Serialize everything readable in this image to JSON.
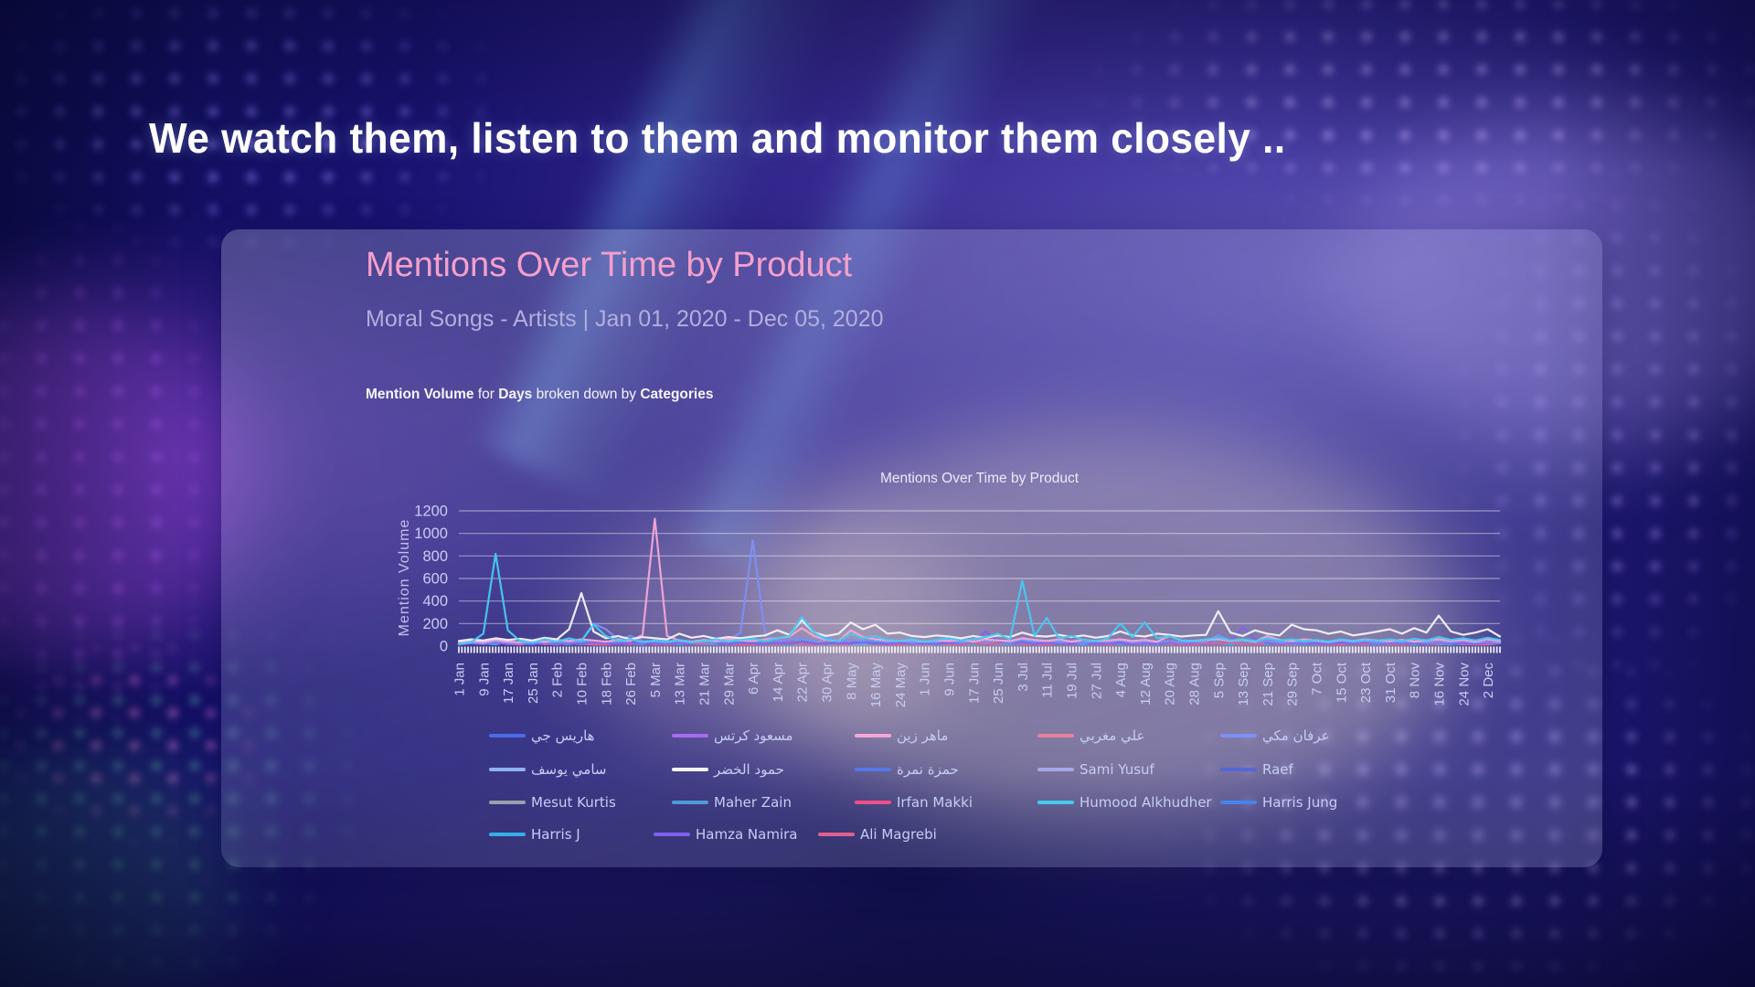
{
  "heading": "We watch them, listen to them and monitor them closely ..",
  "colors": {
    "title_pink": "#f4a0cc",
    "subtitle_lavender": "#b2aede",
    "axis_label": "#c9cdf0",
    "gridline": "rgba(255,255,255,0.45)"
  },
  "panel": {
    "title": "Mentions Over Time by Product",
    "subtitle": "Moral Songs - Artists | Jan 01, 2020 - Dec 05, 2020",
    "breakdown": {
      "metric": "Mention Volume",
      "mid1": " for ",
      "dimension": "Days",
      "mid2": " broken down by ",
      "grouping": "Categories"
    }
  },
  "chart_data": {
    "type": "line",
    "title": "Mentions Over Time by Product",
    "xlabel": "",
    "ylabel": "Mention Volume",
    "ylim": [
      0,
      1200
    ],
    "yticks": [
      0,
      200,
      400,
      600,
      800,
      1000,
      1200
    ],
    "grid": "horizontal",
    "legend_position": "bottom",
    "categories": [
      "1 Jan",
      "9 Jan",
      "17 Jan",
      "25 Jan",
      "2 Feb",
      "10 Feb",
      "18 Feb",
      "26 Feb",
      "5 Mar",
      "13 Mar",
      "21 Mar",
      "29 Mar",
      "6 Apr",
      "14 Apr",
      "22 Apr",
      "30 Apr",
      "8 May",
      "16 May",
      "24 May",
      "1 Jun",
      "9 Jun",
      "17 Jun",
      "25 Jun",
      "3 Jul",
      "11 Jul",
      "19 Jul",
      "27 Jul",
      "4 Aug",
      "12 Aug",
      "20 Aug",
      "28 Aug",
      "5 Sep",
      "13 Sep",
      "21 Sep",
      "29 Sep",
      "7 Oct",
      "15 Oct",
      "23 Oct",
      "31 Oct",
      "8 Nov",
      "16 Nov",
      "24 Nov",
      "2 Dec"
    ],
    "category_step_days": 8,
    "sample_step_days": 4,
    "total_days": 340,
    "series": [
      {
        "name": "هاريس جي",
        "color": "#4a6ae8",
        "values": [
          18,
          30,
          22,
          40,
          25,
          15,
          35,
          20,
          28,
          45,
          24,
          16
        ]
      },
      {
        "name": "مسعود كرتس",
        "color": "#a76bf0",
        "values": [
          20,
          35,
          25,
          15,
          45,
          28,
          18,
          38,
          22,
          30,
          16,
          42
        ]
      },
      {
        "name": "ماهر زين",
        "color": "#f4a6d7",
        "values": [
          30,
          45,
          35,
          55,
          40,
          35,
          50,
          40,
          55,
          45,
          60,
          50,
          40,
          55,
          45,
          100,
          1130,
          90,
          50,
          40,
          55,
          45,
          60,
          50,
          45,
          60,
          70,
          85,
          160,
          90,
          55,
          45,
          140,
          80,
          60,
          50,
          45,
          55,
          40,
          50,
          45,
          55,
          40,
          60,
          50,
          45,
          70,
          55,
          45,
          60,
          40,
          55,
          45,
          50,
          60,
          45,
          55,
          40,
          90,
          50,
          45,
          55,
          60,
          45,
          55,
          40,
          90,
          55,
          45,
          60,
          50,
          40,
          55,
          45,
          60,
          50,
          45,
          55,
          40,
          50,
          60,
          45,
          55,
          40,
          60,
          45
        ]
      },
      {
        "name": "علي مغربي",
        "color": "#e87f9d",
        "values": [
          15,
          28,
          20,
          35,
          18,
          25,
          40,
          22,
          15,
          30,
          24,
          18
        ]
      },
      {
        "name": "عرفان مكي",
        "color": "#7c90f5",
        "values": [
          20,
          30,
          25,
          40,
          30,
          25,
          35,
          30,
          40,
          35,
          45,
          200,
          150,
          60,
          90,
          45,
          40,
          35,
          45,
          30,
          40,
          35,
          50,
          120,
          940,
          100,
          45,
          55,
          70,
          45,
          80,
          40,
          55,
          45,
          60,
          35,
          45,
          30,
          40,
          35,
          50,
          30,
          45,
          35,
          55,
          30,
          60,
          40,
          45,
          35,
          40,
          30,
          45,
          35,
          50,
          30,
          40,
          35,
          45,
          30,
          40,
          35,
          100,
          45,
          55,
          35,
          45,
          30,
          40,
          35,
          45,
          30,
          50,
          35,
          45,
          30,
          40,
          35,
          45,
          30,
          40,
          35,
          45,
          30,
          40,
          30
        ]
      },
      {
        "name": "سامي يوسف",
        "color": "#8fb2f2",
        "values": [
          25,
          40,
          28,
          18,
          35,
          22,
          45,
          26,
          18,
          32,
          24,
          38
        ]
      },
      {
        "name": "حمود الخضر",
        "color": "#f3f3fa",
        "values": [
          45,
          60,
          50,
          70,
          55,
          65,
          50,
          75,
          60,
          150,
          470,
          130,
          70,
          90,
          60,
          80,
          70,
          60,
          110,
          75,
          90,
          65,
          80,
          70,
          85,
          95,
          140,
          100,
          230,
          120,
          90,
          110,
          210,
          150,
          190,
          110,
          120,
          90,
          80,
          95,
          85,
          70,
          90,
          75,
          95,
          80,
          120,
          90,
          85,
          100,
          80,
          95,
          75,
          90,
          130,
          95,
          85,
          110,
          100,
          85,
          95,
          100,
          310,
          120,
          90,
          140,
          110,
          95,
          190,
          150,
          140,
          110,
          130,
          95,
          110,
          130,
          150,
          110,
          160,
          120,
          270,
          130,
          100,
          120,
          150,
          85
        ]
      },
      {
        "name": "حمزة نمرة",
        "color": "#5577e8",
        "values": [
          18,
          32,
          22,
          42,
          26,
          16,
          36,
          24,
          18,
          30,
          40,
          20
        ]
      },
      {
        "name": "Sami Yusuf",
        "color": "#a6a6e6",
        "values": [
          22,
          38,
          26,
          16,
          44,
          28,
          20,
          34,
          24,
          18,
          40,
          26
        ]
      },
      {
        "name": "Raef",
        "color": "#5566d6",
        "values": [
          14,
          26,
          18,
          32,
          20,
          14,
          28,
          18,
          24,
          36,
          20,
          15
        ]
      },
      {
        "name": "Mesut Kurtis",
        "color": "#99a0ae",
        "values": [
          16,
          28,
          20,
          36,
          22,
          15,
          30,
          20,
          26,
          40,
          22,
          16
        ]
      },
      {
        "name": "Maher Zain",
        "color": "#4f9ad8",
        "values": [
          20,
          34,
          24,
          16,
          40,
          26,
          18,
          32,
          22,
          28,
          16,
          38
        ]
      },
      {
        "name": "Irfan Makki",
        "color": "#f04f88",
        "values": [
          15,
          27,
          19,
          33,
          21,
          14,
          29,
          19,
          25,
          37,
          21,
          15
        ]
      },
      {
        "name": "Humood Alkhudher",
        "color": "#47c9f2",
        "values": [
          20,
          35,
          110,
          820,
          140,
          45,
          30,
          60,
          40,
          70,
          45,
          190,
          90,
          45,
          60,
          35,
          50,
          40,
          55,
          35,
          45,
          60,
          40,
          55,
          65,
          45,
          70,
          90,
          260,
          120,
          60,
          45,
          110,
          70,
          90,
          55,
          45,
          60,
          40,
          55,
          70,
          50,
          60,
          80,
          110,
          60,
          580,
          90,
          250,
          70,
          90,
          55,
          45,
          70,
          200,
          80,
          210,
          70,
          90,
          50,
          45,
          60,
          75,
          50,
          60,
          45,
          70,
          50,
          60,
          45,
          55,
          40,
          60,
          45,
          55,
          50,
          60,
          45,
          65,
          50,
          80,
          55,
          70,
          50,
          75,
          55
        ]
      },
      {
        "name": "Harris Jung",
        "color": "#4584ee",
        "values": [
          17,
          30,
          21,
          38,
          24,
          15,
          33,
          21,
          27,
          42,
          23,
          16
        ]
      },
      {
        "name": "Harris J",
        "color": "#36aee8",
        "values": [
          24,
          42,
          28,
          18,
          48,
          30,
          20,
          38,
          26,
          20,
          44,
          28
        ]
      },
      {
        "name": "Hamza Namira",
        "color": "#7e62ee",
        "values": [
          15,
          25,
          20,
          30,
          20,
          25,
          15,
          30,
          20,
          25,
          20,
          35,
          25,
          20,
          30,
          20,
          25,
          20,
          30,
          20,
          60,
          25,
          20,
          30,
          25,
          20,
          30,
          20,
          40,
          25,
          20,
          30,
          25,
          35,
          25,
          20,
          30,
          20,
          25,
          20,
          30,
          25,
          40,
          130,
          45,
          25,
          35,
          20,
          30,
          25,
          20,
          30,
          20,
          25,
          30,
          20,
          25,
          20,
          35,
          25,
          30,
          40,
          60,
          45,
          170,
          60,
          30,
          25,
          30,
          20,
          25,
          20,
          30,
          25,
          35,
          20,
          30,
          25,
          30,
          20,
          35,
          25,
          30,
          20,
          30,
          25
        ]
      },
      {
        "name": "Ali Magrebi",
        "color": "#e0608e",
        "values": [
          16,
          29,
          20,
          35,
          22,
          15,
          31,
          20,
          26,
          39,
          22,
          16
        ]
      }
    ],
    "draw_order": [
      9,
      10,
      0,
      1,
      3,
      5,
      7,
      8,
      11,
      12,
      14,
      15,
      17,
      16,
      4,
      2,
      6,
      13
    ],
    "legend_rows": [
      {
        "series": [
          0,
          1,
          2,
          3,
          4
        ],
        "item_width": 200
      },
      {
        "series": [
          5,
          6,
          7,
          8,
          9
        ],
        "item_width": 200
      },
      {
        "series": [
          10,
          11,
          12,
          13,
          14
        ],
        "item_width": 200
      },
      {
        "series": [
          15,
          16,
          17
        ],
        "item_width": 180
      }
    ]
  }
}
